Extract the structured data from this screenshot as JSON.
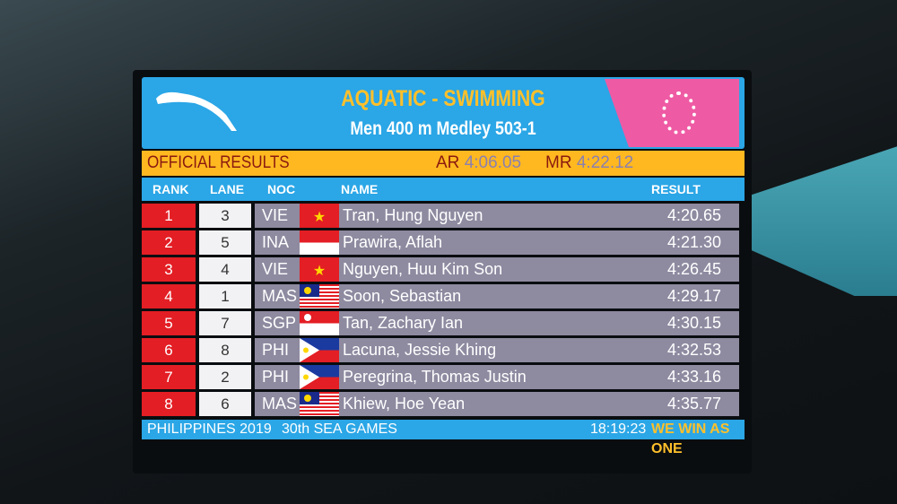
{
  "header": {
    "title": "AQUATIC - SWIMMING",
    "subtitle": "Men 400 m Medley 503-1",
    "logo": "PHILIPPINES 2019 SEA GAMES"
  },
  "records": {
    "status": "OFFICIAL RESULTS",
    "ar_label": "AR",
    "ar_value": "4:06.05",
    "mr_label": "MR",
    "mr_value": "4:22.12"
  },
  "columns": {
    "rank": "RANK",
    "lane": "LANE",
    "noc": "NOC",
    "name": "NAME",
    "result": "RESULT"
  },
  "rows": [
    {
      "rank": "1",
      "lane": "3",
      "noc": "VIE",
      "flag": "vietnam",
      "name": "Tran, Hung Nguyen",
      "result": "4:20.65"
    },
    {
      "rank": "2",
      "lane": "5",
      "noc": "INA",
      "flag": "indonesia",
      "name": "Prawira, Aflah",
      "result": "4:21.30"
    },
    {
      "rank": "3",
      "lane": "4",
      "noc": "VIE",
      "flag": "vietnam",
      "name": "Nguyen, Huu Kim Son",
      "result": "4:26.45"
    },
    {
      "rank": "4",
      "lane": "1",
      "noc": "MAS",
      "flag": "malaysia",
      "name": "Soon, Sebastian",
      "result": "4:29.17"
    },
    {
      "rank": "5",
      "lane": "7",
      "noc": "SGP",
      "flag": "singapore",
      "name": "Tan, Zachary Ian",
      "result": "4:30.15"
    },
    {
      "rank": "6",
      "lane": "8",
      "noc": "PHI",
      "flag": "philippines",
      "name": "Lacuna, Jessie Khing",
      "result": "4:32.53"
    },
    {
      "rank": "7",
      "lane": "2",
      "noc": "PHI",
      "flag": "philippines",
      "name": "Peregrina, Thomas Justin",
      "result": "4:33.16"
    },
    {
      "rank": "8",
      "lane": "6",
      "noc": "MAS",
      "flag": "malaysia",
      "name": "Khiew, Hoe Yean",
      "result": "4:35.77"
    }
  ],
  "footer": {
    "left": "PHILIPPINES 2019",
    "games": "30th SEA GAMES",
    "time": "18:19:23",
    "slogan": "WE WIN AS ONE"
  },
  "colors": {
    "blue": "#2ba6e6",
    "yellow": "#ffb820",
    "red": "#e31e24",
    "pink": "#ef5aa4",
    "row": "#8e8aa0"
  }
}
